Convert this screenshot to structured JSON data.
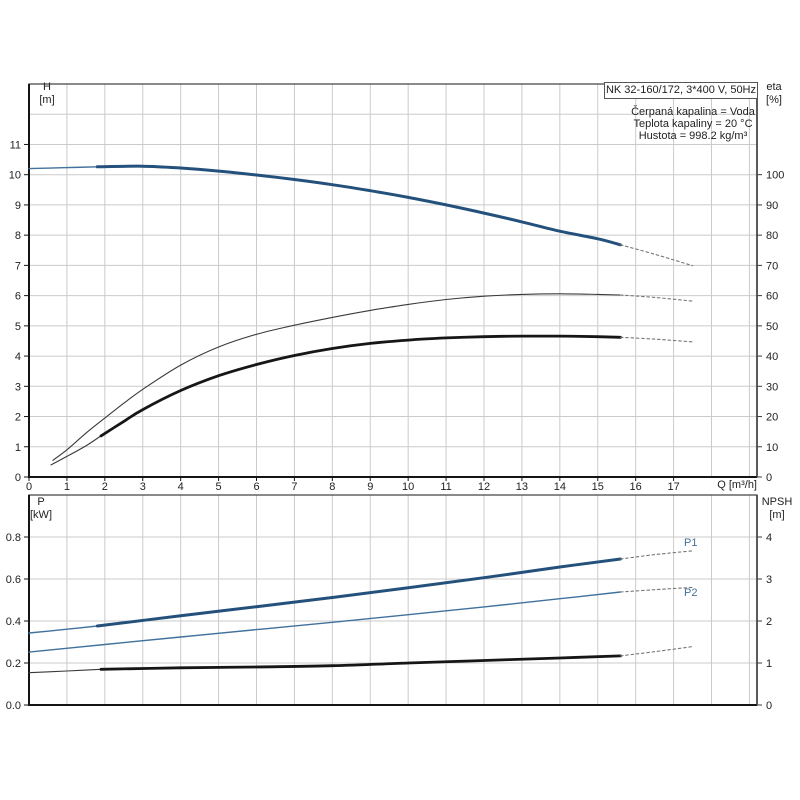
{
  "header": {
    "model": "NK 32-160/172, 3*400 V, 50Hz",
    "lines": [
      "Čerpaná kapalina = Voda",
      "Teplota kapaliny = 20 °C",
      "Hustota = 998.2 kg/m³"
    ]
  },
  "labels": {
    "h_sym": "H",
    "h_unit": "[m]",
    "eta_sym": "eta",
    "eta_unit": "[%]",
    "q_axis": "Q [m³/h]",
    "p_sym": "P",
    "p_unit": "[kW]",
    "npsh_sym": "NPSH",
    "npsh_unit": "[m]",
    "p1": "P1",
    "p2": "P2"
  },
  "colors": {
    "curve_blue": "#24517c",
    "curve_blue_thin": "#41719c",
    "curve_black": "#161616",
    "curve_black_thin": "#3a3a3a",
    "dashed_gray": "#757575",
    "grid": "#cbcbcb",
    "frame": "#3c3c3c",
    "axis": "#151515",
    "tick_text": "#222222"
  },
  "chart_data": [
    {
      "type": "line",
      "title": "NK 32-160/172, 3*400 V, 50Hz",
      "xlabel": "Q [m³/h]",
      "ylabel_left": "H [m]",
      "ylabel_right": "eta [%]",
      "xlim": [
        0,
        19.2
      ],
      "ylim_left": [
        0,
        13
      ],
      "ylim_right": [
        0,
        130
      ],
      "grid": true,
      "x_ticks": [
        "0",
        "1",
        "2",
        "3",
        "4",
        "5",
        "6",
        "7",
        "8",
        "9",
        "10",
        "11",
        "12",
        "13",
        "14",
        "15",
        "16",
        "17"
      ],
      "y_ticks_left": [
        "0",
        "1",
        "2",
        "3",
        "4",
        "5",
        "6",
        "7",
        "8",
        "9",
        "10",
        "11"
      ],
      "y_ticks_right": [
        "0",
        "10",
        "20",
        "30",
        "40",
        "50",
        "60",
        "70",
        "80",
        "90",
        "100"
      ],
      "series": [
        {
          "id": "qh-lead",
          "name": "QH head curve (low-flow lead)",
          "y_axis": "left",
          "style": "blue-thin",
          "points": [
            [
              0,
              10.2
            ],
            [
              0.9,
              10.23
            ],
            [
              1.8,
              10.26
            ]
          ]
        },
        {
          "id": "qh-main",
          "name": "QH head curve",
          "y_axis": "left",
          "style": "blue-thick",
          "points": [
            [
              1.8,
              10.26
            ],
            [
              3,
              10.28
            ],
            [
              4,
              10.22
            ],
            [
              5,
              10.12
            ],
            [
              6,
              9.99
            ],
            [
              7,
              9.84
            ],
            [
              8,
              9.67
            ],
            [
              9,
              9.47
            ],
            [
              10,
              9.25
            ],
            [
              11,
              9.0
            ],
            [
              12,
              8.73
            ],
            [
              13,
              8.44
            ],
            [
              14,
              8.13
            ],
            [
              15,
              7.88
            ],
            [
              15.6,
              7.68
            ]
          ]
        },
        {
          "id": "qh-ext",
          "name": "QH head curve (extrapolated)",
          "y_axis": "left",
          "style": "dashed",
          "points": [
            [
              15.6,
              7.68
            ],
            [
              16.5,
              7.37
            ],
            [
              17.5,
              6.99
            ]
          ]
        },
        {
          "id": "eta1-main",
          "name": "Pump efficiency",
          "y_axis": "right",
          "style": "black-thin",
          "points": [
            [
              0.63,
              5.5
            ],
            [
              1,
              9
            ],
            [
              1.5,
              14.5
            ],
            [
              2,
              19.5
            ],
            [
              2.5,
              24.4
            ],
            [
              3,
              29
            ],
            [
              4,
              37
            ],
            [
              5,
              43
            ],
            [
              6,
              47.2
            ],
            [
              7,
              50.2
            ],
            [
              8,
              52.8
            ],
            [
              9,
              55.1
            ],
            [
              10,
              57.1
            ],
            [
              11,
              58.7
            ],
            [
              12,
              59.8
            ],
            [
              13,
              60.4
            ],
            [
              14,
              60.6
            ],
            [
              15,
              60.4
            ],
            [
              15.6,
              60.2
            ]
          ]
        },
        {
          "id": "eta1-ext",
          "name": "Pump efficiency (extrapolated)",
          "y_axis": "right",
          "style": "dashed",
          "points": [
            [
              15.6,
              60.2
            ],
            [
              16.5,
              59.4
            ],
            [
              17.5,
              58.2
            ]
          ]
        },
        {
          "id": "eta2-lead",
          "name": "Pump+motor efficiency (low-flow lead)",
          "y_axis": "right",
          "style": "black-thin",
          "points": [
            [
              0.58,
              4
            ],
            [
              1,
              6.8
            ],
            [
              1.5,
              10.3
            ],
            [
              1.9,
              13.6
            ]
          ]
        },
        {
          "id": "eta2-main",
          "name": "Pump+motor efficiency",
          "y_axis": "right",
          "style": "black-thick",
          "points": [
            [
              1.9,
              13.6
            ],
            [
              2.5,
              18.4
            ],
            [
              3,
              22.3
            ],
            [
              4,
              28.6
            ],
            [
              5,
              33.5
            ],
            [
              6,
              37.2
            ],
            [
              7,
              40.2
            ],
            [
              8,
              42.5
            ],
            [
              9,
              44.2
            ],
            [
              10,
              45.3
            ],
            [
              11,
              46.0
            ],
            [
              12,
              46.4
            ],
            [
              13,
              46.6
            ],
            [
              14,
              46.6
            ],
            [
              15,
              46.4
            ],
            [
              15.6,
              46.2
            ]
          ]
        },
        {
          "id": "eta2-ext",
          "name": "Pump+motor efficiency (extrapolated)",
          "y_axis": "right",
          "style": "dashed",
          "points": [
            [
              15.6,
              46.2
            ],
            [
              16.5,
              45.6
            ],
            [
              17.5,
              44.7
            ]
          ]
        }
      ]
    },
    {
      "type": "line",
      "title": "Power and NPSH",
      "xlabel": "Q [m³/h]",
      "ylabel_left": "P [kW]",
      "ylabel_right": "NPSH [m]",
      "xlim": [
        0,
        19.2
      ],
      "ylim_left": [
        0,
        1.0
      ],
      "ylim_right": [
        0,
        5
      ],
      "grid": true,
      "x_ticks": [],
      "y_ticks_left": [
        "0.0",
        "0.2",
        "0.4",
        "0.6",
        "0.8"
      ],
      "y_ticks_right": [
        "0",
        "1",
        "2",
        "3",
        "4"
      ],
      "series": [
        {
          "id": "p1-lead",
          "name": "P1 input power (low-flow lead)",
          "y_axis": "left",
          "style": "blue-thin",
          "points": [
            [
              0,
              0.343
            ],
            [
              0.9,
              0.359
            ],
            [
              1.8,
              0.376
            ]
          ]
        },
        {
          "id": "p1-main",
          "name": "P1 input power",
          "y_axis": "left",
          "style": "blue-thick",
          "points": [
            [
              1.8,
              0.376
            ],
            [
              4,
              0.425
            ],
            [
              6,
              0.468
            ],
            [
              8,
              0.512
            ],
            [
              10,
              0.558
            ],
            [
              12,
              0.606
            ],
            [
              14,
              0.657
            ],
            [
              15.6,
              0.695
            ]
          ]
        },
        {
          "id": "p1-ext",
          "name": "P1 input power (extrapolated)",
          "y_axis": "left",
          "style": "dashed",
          "points": [
            [
              15.6,
              0.695
            ],
            [
              16.5,
              0.716
            ],
            [
              17.5,
              0.734
            ]
          ]
        },
        {
          "id": "p2-main",
          "name": "P2 shaft power",
          "y_axis": "left",
          "style": "blue-thin",
          "points": [
            [
              0,
              0.252
            ],
            [
              2,
              0.288
            ],
            [
              4,
              0.324
            ],
            [
              6,
              0.359
            ],
            [
              8,
              0.394
            ],
            [
              10,
              0.43
            ],
            [
              12,
              0.467
            ],
            [
              14,
              0.506
            ],
            [
              15.6,
              0.538
            ]
          ]
        },
        {
          "id": "p2-ext",
          "name": "P2 shaft power (extrapolated)",
          "y_axis": "left",
          "style": "dashed",
          "points": [
            [
              15.6,
              0.538
            ],
            [
              16.5,
              0.549
            ],
            [
              17.5,
              0.56
            ]
          ]
        },
        {
          "id": "npsh-lead",
          "name": "NPSH (low-flow lead)",
          "y_axis": "right",
          "style": "black-thin",
          "points": [
            [
              0,
              0.77
            ],
            [
              1,
              0.81
            ],
            [
              1.9,
              0.85
            ]
          ]
        },
        {
          "id": "npsh-main",
          "name": "NPSH",
          "y_axis": "right",
          "style": "black-thick",
          "points": [
            [
              1.9,
              0.85
            ],
            [
              4,
              0.885
            ],
            [
              6,
              0.905
            ],
            [
              8,
              0.935
            ],
            [
              10,
              1.0
            ],
            [
              12,
              1.06
            ],
            [
              14,
              1.12
            ],
            [
              15.6,
              1.17
            ]
          ]
        },
        {
          "id": "npsh-ext",
          "name": "NPSH (extrapolated)",
          "y_axis": "right",
          "style": "dashed",
          "points": [
            [
              15.6,
              1.17
            ],
            [
              16.5,
              1.27
            ],
            [
              17.5,
              1.39
            ]
          ]
        }
      ]
    }
  ]
}
